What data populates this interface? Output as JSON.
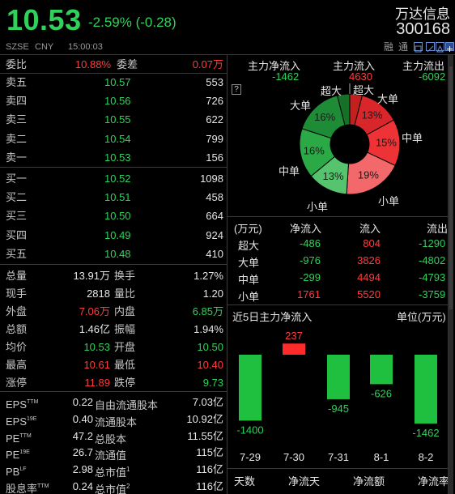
{
  "header": {
    "price": "10.53",
    "change": "-2.59% (-0.28)",
    "exchange": "SZSE",
    "currency": "CNY",
    "time": "15:00:03",
    "name": "万达信息",
    "code": "300168",
    "tag_rong": "融",
    "tag_tong": "通"
  },
  "weibi": {
    "label1": "委比",
    "value1": "10.88%",
    "label2": "委差",
    "value2": "0.07万"
  },
  "asks": [
    {
      "label": "卖五",
      "price": "10.57",
      "vol": "553"
    },
    {
      "label": "卖四",
      "price": "10.56",
      "vol": "726"
    },
    {
      "label": "卖三",
      "price": "10.55",
      "vol": "622"
    },
    {
      "label": "卖二",
      "price": "10.54",
      "vol": "799"
    },
    {
      "label": "卖一",
      "price": "10.53",
      "vol": "156"
    }
  ],
  "bids": [
    {
      "label": "买一",
      "price": "10.52",
      "vol": "1098"
    },
    {
      "label": "买二",
      "price": "10.51",
      "vol": "458"
    },
    {
      "label": "买三",
      "price": "10.50",
      "vol": "664"
    },
    {
      "label": "买四",
      "price": "10.49",
      "vol": "924"
    },
    {
      "label": "买五",
      "price": "10.48",
      "vol": "410"
    }
  ],
  "stats": [
    {
      "l1": "总量",
      "v1": "13.91万",
      "l2": "换手",
      "v2": "1.27%"
    },
    {
      "l1": "现手",
      "v1": "2818",
      "l2": "量比",
      "v2": "1.20"
    },
    {
      "l1": "外盘",
      "v1": "7.06万",
      "l2": "内盘",
      "v2": "6.85万"
    },
    {
      "l1": "总额",
      "v1": "1.46亿",
      "l2": "振幅",
      "v2": "1.94%"
    },
    {
      "l1": "均价",
      "v1": "10.53",
      "l2": "开盘",
      "v2": "10.50"
    },
    {
      "l1": "最高",
      "v1": "10.61",
      "l2": "最低",
      "v2": "10.40"
    },
    {
      "l1": "涨停",
      "v1": "11.89",
      "l2": "跌停",
      "v2": "9.73"
    }
  ],
  "fundamentals": [
    {
      "l1": "EPS",
      "s1": "TTM",
      "v1": "0.22",
      "l2": "自由流通股本",
      "s2": "",
      "v2": "7.03亿"
    },
    {
      "l1": "EPS",
      "s1": "19E",
      "v1": "0.40",
      "l2": "流通股本",
      "s2": "",
      "v2": "10.92亿"
    },
    {
      "l1": "PE",
      "s1": "TTM",
      "v1": "47.2",
      "l2": "总股本",
      "s2": "",
      "v2": "11.55亿"
    },
    {
      "l1": "PE",
      "s1": "19E",
      "v1": "26.7",
      "l2": "流通值",
      "s2": "",
      "v2": "115亿"
    },
    {
      "l1": "PB",
      "s1": "LF",
      "v1": "2.98",
      "l2": "总市值",
      "s2": "1",
      "v2": "116亿"
    },
    {
      "l1": "股息率",
      "s1": "TTM",
      "v1": "0.24",
      "l2": "总市值",
      "s2": "2",
      "v2": "116亿"
    }
  ],
  "flow_summary": [
    {
      "label": "主力净流入",
      "value": "-1462"
    },
    {
      "label": "主力流入",
      "value": "4630"
    },
    {
      "label": "主力流出",
      "value": "-6092"
    }
  ],
  "help_icon": "?",
  "pie": {
    "labels": {
      "chaoda_l": "超大",
      "chaoda_r": "超大",
      "dadan_l": "大单",
      "dadan_r": "大单",
      "zhongdan_l": "中单",
      "zhongdan_r": "中单",
      "xiaodan_l": "小单",
      "xiaodan_r": "小单"
    },
    "slices": [
      {
        "name": "超大-流入",
        "pct": 4,
        "color": "#c41f1f",
        "label": ""
      },
      {
        "name": "大单-流入",
        "pct": 13,
        "color": "#d9262b",
        "label": "13%"
      },
      {
        "name": "中单-流入",
        "pct": 15,
        "color": "#ee3336",
        "label": "15%"
      },
      {
        "name": "小单-流入",
        "pct": 19,
        "color": "#f3686a",
        "label": "19%"
      },
      {
        "name": "小单-流出",
        "pct": 13,
        "color": "#56c46f",
        "label": "13%"
      },
      {
        "name": "中单-流出",
        "pct": 16,
        "color": "#2aa946",
        "label": "16%"
      },
      {
        "name": "大单-流出",
        "pct": 16,
        "color": "#1e8c36",
        "label": "16%"
      },
      {
        "name": "超大-流出",
        "pct": 4,
        "color": "#157028",
        "label": ""
      }
    ]
  },
  "flow_table": {
    "headers": [
      "(万元)",
      "净流入",
      "流入",
      "流出"
    ],
    "rows": [
      {
        "type": "超大",
        "net": "-486",
        "in": "804",
        "out": "-1290"
      },
      {
        "type": "大单",
        "net": "-976",
        "in": "3826",
        "out": "-4802"
      },
      {
        "type": "中单",
        "net": "-299",
        "in": "4494",
        "out": "-4793"
      },
      {
        "type": "小单",
        "net": "1761",
        "in": "5520",
        "out": "-3759"
      }
    ]
  },
  "chart_title": "近5日主力净流入",
  "chart_unit": "单位(万元)",
  "chart_data": {
    "type": "bar",
    "title": "近5日主力净流入",
    "ylabel": "单位(万元)",
    "categories": [
      "7-29",
      "7-30",
      "7-31",
      "8-1",
      "8-2"
    ],
    "values": [
      -1400,
      237,
      -945,
      -626,
      -1462
    ],
    "labels": [
      "-1400",
      "237",
      "-945",
      "-626",
      "-1462"
    ],
    "colors": {
      "positive": "#ff2a2a",
      "negative": "#1fc03f"
    }
  },
  "footer": [
    "天数",
    "净流天",
    "净流额",
    "净流率"
  ]
}
